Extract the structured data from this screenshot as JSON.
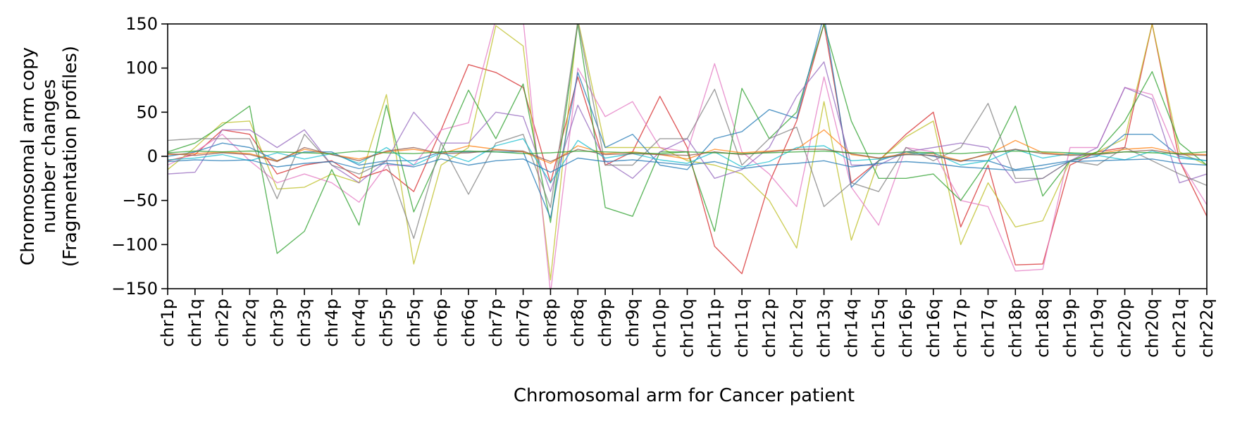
{
  "chart_data": {
    "type": "line",
    "title": "",
    "xlabel": "Chromosomal arm for Cancer patient",
    "ylabel_lines": [
      "Chromosomal arm copy",
      "number changes",
      "(Fragmentation profiles)"
    ],
    "ylim": [
      -150,
      150
    ],
    "yticks": [
      150,
      100,
      50,
      0,
      -50,
      -100,
      -150
    ],
    "ytick_labels": [
      "150",
      "100",
      "50",
      "0",
      "−50",
      "−100",
      "−150"
    ],
    "grid": false,
    "legend": "none",
    "categories": [
      "chr1p",
      "chr1q",
      "chr2p",
      "chr2q",
      "chr3p",
      "chr3q",
      "chr4p",
      "chr4q",
      "chr5p",
      "chr5q",
      "chr6p",
      "chr6q",
      "chr7p",
      "chr7q",
      "chr8p",
      "chr8q",
      "chr9p",
      "chr9q",
      "chr10p",
      "chr10q",
      "chr11p",
      "chr11q",
      "chr12p",
      "chr12q",
      "chr13q",
      "chr14q",
      "chr15q",
      "chr16p",
      "chr16q",
      "chr17p",
      "chr17q",
      "chr18p",
      "chr18q",
      "chr19p",
      "chr19q",
      "chr20p",
      "chr20q",
      "chr21q",
      "chr22q"
    ],
    "series": [
      {
        "color": "#d62728",
        "values": [
          -5,
          2,
          30,
          25,
          -20,
          -10,
          -5,
          -25,
          -15,
          -40,
          30,
          104,
          95,
          78,
          -30,
          90,
          -10,
          5,
          68,
          10,
          -102,
          -133,
          -30,
          40,
          150,
          -30,
          -5,
          25,
          50,
          -80,
          -10,
          -123,
          -122,
          -10,
          5,
          10,
          150,
          -5,
          -68
        ]
      },
      {
        "color": "#bcbd22",
        "values": [
          -15,
          10,
          38,
          40,
          -37,
          -35,
          -20,
          -30,
          70,
          -122,
          -10,
          10,
          148,
          125,
          -140,
          155,
          10,
          10,
          10,
          -5,
          -10,
          -20,
          -50,
          -104,
          62,
          -95,
          -5,
          22,
          40,
          -100,
          -30,
          -80,
          -73,
          -5,
          5,
          20,
          150,
          5,
          -10
        ]
      },
      {
        "color": "#e377c2",
        "values": [
          -10,
          5,
          25,
          -5,
          -30,
          -20,
          -30,
          -52,
          -10,
          -10,
          30,
          38,
          155,
          155,
          -155,
          100,
          45,
          62,
          10,
          5,
          105,
          5,
          -20,
          -57,
          90,
          -35,
          -78,
          10,
          5,
          -50,
          -57,
          -130,
          -128,
          10,
          10,
          78,
          70,
          -5,
          -55
        ]
      },
      {
        "color": "#2ca02c",
        "values": [
          5,
          15,
          35,
          57,
          -110,
          -85,
          -15,
          -78,
          58,
          -63,
          5,
          75,
          20,
          82,
          -75,
          150,
          -58,
          -68,
          5,
          5,
          -85,
          77,
          20,
          50,
          150,
          40,
          -25,
          -25,
          -20,
          -50,
          -5,
          57,
          -45,
          -5,
          5,
          40,
          96,
          15,
          -10
        ]
      },
      {
        "color": "#1f77b4",
        "values": [
          0,
          5,
          15,
          10,
          -5,
          5,
          5,
          -10,
          -5,
          -5,
          5,
          5,
          5,
          5,
          -70,
          95,
          10,
          25,
          -10,
          -15,
          20,
          28,
          53,
          43,
          160,
          -35,
          -5,
          5,
          0,
          -5,
          -5,
          -15,
          -10,
          -5,
          0,
          25,
          25,
          0,
          -5
        ]
      },
      {
        "color": "#9467bd",
        "values": [
          -20,
          -18,
          30,
          30,
          10,
          30,
          -10,
          -30,
          -5,
          50,
          15,
          15,
          50,
          45,
          -40,
          58,
          -5,
          -25,
          5,
          20,
          -25,
          -15,
          10,
          68,
          107,
          -10,
          -10,
          5,
          10,
          15,
          10,
          -30,
          -25,
          -5,
          10,
          78,
          65,
          -30,
          -20
        ]
      },
      {
        "color": "#7f7f7f",
        "values": [
          18,
          20,
          20,
          20,
          -48,
          25,
          -10,
          -20,
          -5,
          -93,
          15,
          -43,
          15,
          25,
          -58,
          153,
          -10,
          -10,
          20,
          20,
          76,
          -10,
          20,
          33,
          -57,
          -30,
          -40,
          10,
          -5,
          10,
          60,
          -25,
          -25,
          -5,
          -10,
          10,
          -5,
          -20,
          -33
        ]
      },
      {
        "color": "#ff7f0e",
        "values": [
          2,
          3,
          5,
          3,
          -5,
          8,
          2,
          -3,
          5,
          8,
          3,
          12,
          8,
          5,
          -8,
          12,
          3,
          5,
          2,
          -3,
          8,
          4,
          6,
          8,
          30,
          2,
          -2,
          3,
          3,
          -5,
          2,
          18,
          4,
          2,
          3,
          8,
          10,
          3,
          2
        ]
      },
      {
        "color": "#17becf",
        "values": [
          -4,
          -2,
          2,
          -5,
          4,
          -3,
          3,
          -8,
          10,
          -10,
          4,
          -6,
          12,
          20,
          -30,
          18,
          -2,
          3,
          -4,
          -8,
          5,
          -12,
          -6,
          10,
          12,
          -5,
          -3,
          2,
          4,
          -10,
          -5,
          8,
          -2,
          3,
          1,
          -4,
          6,
          -2,
          -5
        ]
      },
      {
        "color": "#8c564b",
        "values": [
          3,
          1,
          4,
          2,
          -6,
          10,
          2,
          -5,
          6,
          10,
          3,
          4,
          7,
          6,
          -6,
          8,
          2,
          3,
          2,
          1,
          5,
          2,
          5,
          8,
          8,
          3,
          -2,
          2,
          1,
          -6,
          3,
          8,
          3,
          1,
          2,
          5,
          7,
          2,
          1
        ]
      },
      {
        "color": "#1f77b4",
        "values": [
          -6,
          -4,
          -5,
          -4,
          -12,
          -8,
          -6,
          -14,
          -8,
          -12,
          -3,
          -10,
          -5,
          -3,
          -18,
          -2,
          -6,
          -4,
          -7,
          -10,
          -6,
          -14,
          -10,
          -8,
          -5,
          -12,
          -8,
          -6,
          -8,
          -12,
          -14,
          -16,
          -14,
          -6,
          -5,
          -4,
          -3,
          -8,
          -10
        ]
      },
      {
        "color": "#2ca02c",
        "values": [
          4,
          6,
          5,
          6,
          5,
          4,
          3,
          6,
          4,
          3,
          5,
          6,
          5,
          3,
          4,
          6,
          5,
          4,
          3,
          5,
          4,
          3,
          4,
          5,
          6,
          4,
          3,
          5,
          4,
          3,
          5,
          6,
          5,
          4,
          3,
          5,
          4,
          3,
          5
        ]
      }
    ]
  }
}
